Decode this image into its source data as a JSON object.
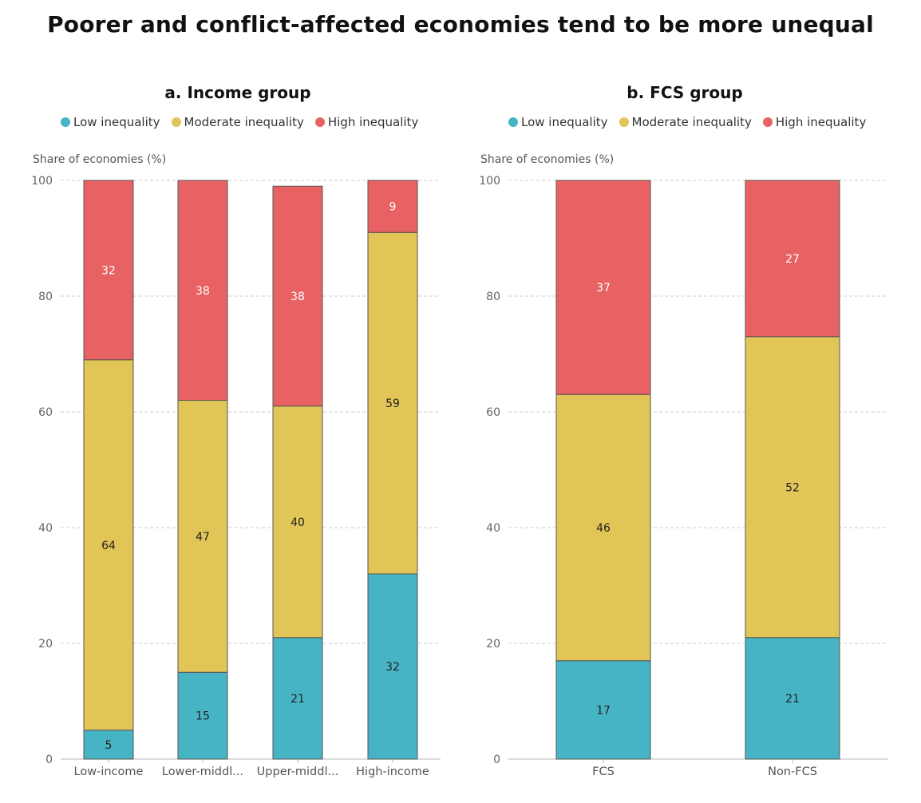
{
  "title": "Poorer and conflict-affected economies tend to be more unequal",
  "legend": [
    {
      "name": "Low inequality",
      "color": "#46b4c4"
    },
    {
      "name": "Moderate inequality",
      "color": "#e2c557"
    },
    {
      "name": "High inequality",
      "color": "#e86263"
    }
  ],
  "chart_data": [
    {
      "type": "bar",
      "stacked": true,
      "title": "a. Income group",
      "ylabel": "Share of economies (%)",
      "ylim": [
        0,
        100
      ],
      "yticks": [
        0,
        20,
        40,
        60,
        80,
        100
      ],
      "grid": true,
      "legend_position": "top",
      "categories": [
        "Low-income",
        "Lower-middl...",
        "Upper-middl...",
        "High-income"
      ],
      "series": [
        {
          "name": "Low inequality",
          "color": "#46b4c4",
          "values": [
            5,
            15,
            21,
            32
          ],
          "label_color": "#222222"
        },
        {
          "name": "Moderate inequality",
          "color": "#e2c557",
          "values": [
            64,
            47,
            40,
            59
          ],
          "label_color": "#222222"
        },
        {
          "name": "High inequality",
          "color": "#e86263",
          "values": [
            32,
            38,
            38,
            9
          ],
          "label_color": "#ffffff"
        }
      ]
    },
    {
      "type": "bar",
      "stacked": true,
      "title": "b. FCS group",
      "ylabel": "Share of economies (%)",
      "ylim": [
        0,
        100
      ],
      "yticks": [
        0,
        20,
        40,
        60,
        80,
        100
      ],
      "grid": true,
      "legend_position": "top",
      "categories": [
        "FCS",
        "Non-FCS"
      ],
      "series": [
        {
          "name": "Low inequality",
          "color": "#46b4c4",
          "values": [
            17,
            21
          ],
          "label_color": "#222222"
        },
        {
          "name": "Moderate inequality",
          "color": "#e2c557",
          "values": [
            46,
            52
          ],
          "label_color": "#222222"
        },
        {
          "name": "High inequality",
          "color": "#e86263",
          "values": [
            37,
            27
          ],
          "label_color": "#ffffff"
        }
      ]
    }
  ]
}
